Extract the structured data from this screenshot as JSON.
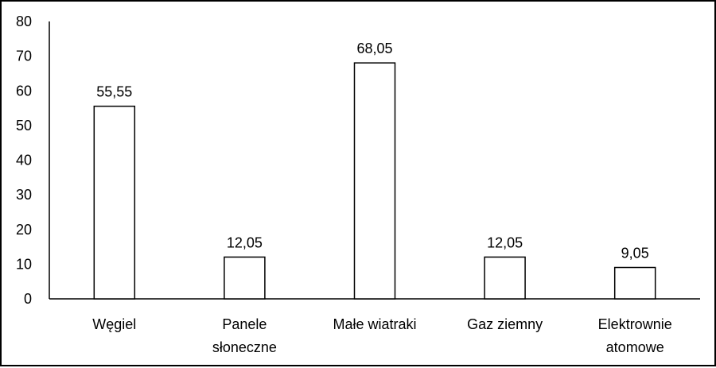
{
  "chart_data": {
    "type": "bar",
    "categories": [
      [
        "Węgiel"
      ],
      [
        "Panele",
        "słoneczne"
      ],
      [
        "Małe wiatraki"
      ],
      [
        "Gaz ziemny"
      ],
      [
        "Elektrownie",
        "atomowe"
      ]
    ],
    "values": [
      55.55,
      12.05,
      68.05,
      12.05,
      9.05
    ],
    "data_labels": [
      "55,55",
      "12,05",
      "68,05",
      "12,05",
      "9,05"
    ],
    "ylim": [
      0,
      80
    ],
    "yticks": [
      0,
      10,
      20,
      30,
      40,
      50,
      60,
      70,
      80
    ],
    "grid": false,
    "legend": "none",
    "colors": {
      "bar_fill": "#ffffff",
      "bar_stroke": "#000000",
      "axis": "#000000"
    }
  }
}
